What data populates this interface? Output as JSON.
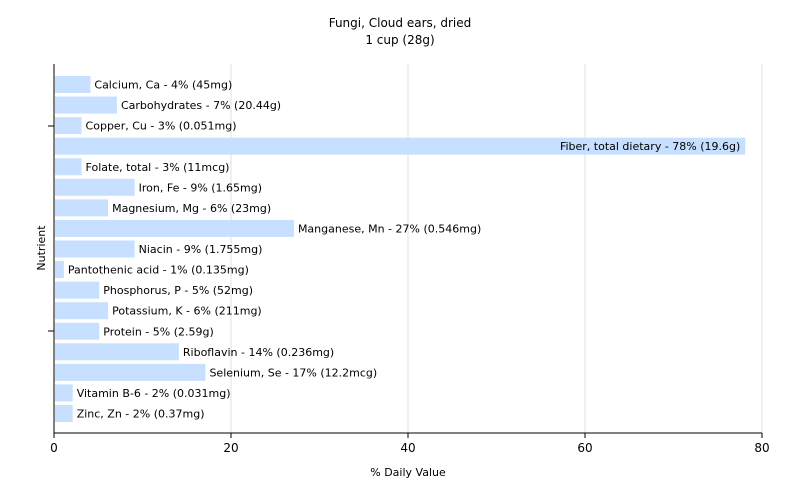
{
  "chart_data": {
    "type": "bar",
    "orientation": "horizontal",
    "title": "Fungi, Cloud ears, dried",
    "subtitle": "1 cup (28g)",
    "xlabel": "% Daily Value",
    "ylabel": "Nutrient",
    "xlim": [
      0,
      80
    ],
    "xticks": [
      0,
      20,
      40,
      60,
      80
    ],
    "grid": true,
    "bar_color": "#c8e0ff",
    "grid_color": "#e0e0e0",
    "categories": [
      "Calcium, Ca",
      "Carbohydrates",
      "Copper, Cu",
      "Fiber, total dietary",
      "Folate, total",
      "Iron, Fe",
      "Magnesium, Mg",
      "Manganese, Mn",
      "Niacin",
      "Pantothenic acid",
      "Phosphorus, P",
      "Potassium, K",
      "Protein",
      "Riboflavin",
      "Selenium, Se",
      "Vitamin B-6",
      "Zinc, Zn"
    ],
    "values": [
      4,
      7,
      3,
      78,
      3,
      9,
      6,
      27,
      9,
      1,
      5,
      6,
      5,
      14,
      17,
      2,
      2
    ],
    "labels": [
      "Calcium, Ca - 4% (45mg)",
      "Carbohydrates - 7% (20.44g)",
      "Copper, Cu - 3% (0.051mg)",
      "Fiber, total dietary - 78% (19.6g)",
      "Folate, total - 3% (11mcg)",
      "Iron, Fe - 9% (1.65mg)",
      "Magnesium, Mg - 6% (23mg)",
      "Manganese, Mn - 27% (0.546mg)",
      "Niacin - 9% (1.755mg)",
      "Pantothenic acid - 1% (0.135mg)",
      "Phosphorus, P - 5% (52mg)",
      "Potassium, K - 6% (211mg)",
      "Protein - 5% (2.59g)",
      "Riboflavin - 14% (0.236mg)",
      "Selenium, Se - 17% (12.2mcg)",
      "Vitamin B-6 - 2% (0.031mg)",
      "Zinc, Zn - 2% (0.37mg)"
    ]
  }
}
